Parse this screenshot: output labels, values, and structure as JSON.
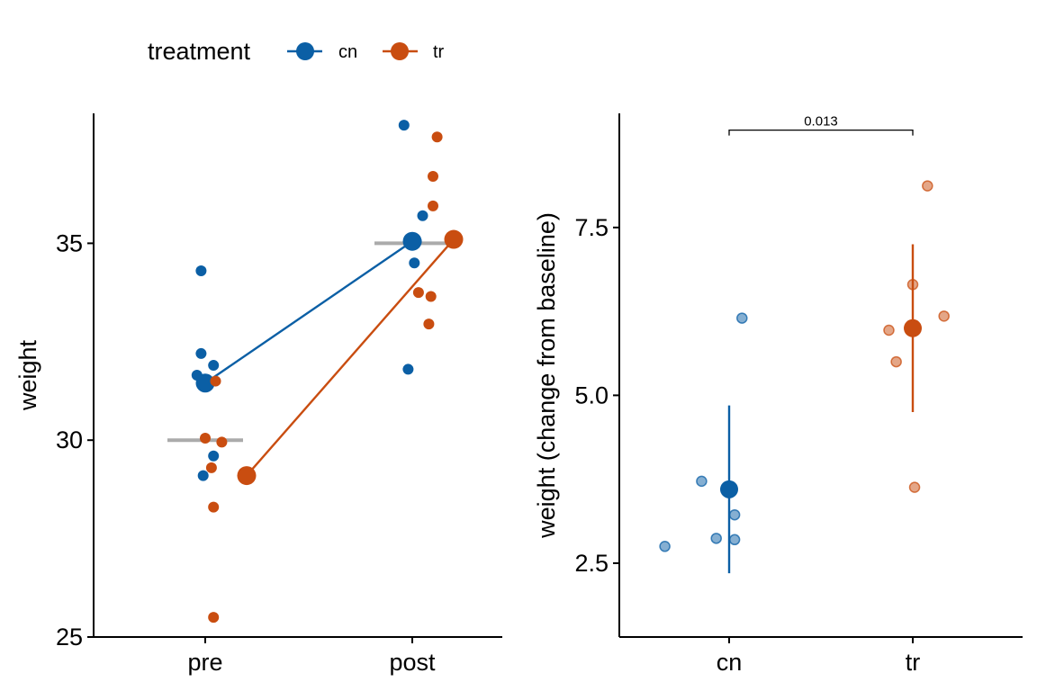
{
  "legend": {
    "title": "treatment",
    "items": [
      {
        "label": "cn",
        "color": "#0b5fa5"
      },
      {
        "label": "tr",
        "color": "#c94d10"
      }
    ],
    "position": "top"
  },
  "reference_color": "#ababab",
  "chart_data": [
    {
      "type": "scatter",
      "title": "",
      "xlabel": "",
      "ylabel": "weight",
      "categories": [
        "pre",
        "post"
      ],
      "ylim": [
        25,
        38.3
      ],
      "yticks": [
        25,
        30,
        35
      ],
      "tick_labels": [
        "25",
        "30",
        "35"
      ],
      "reference_lines": [
        {
          "category": "pre",
          "value": 30
        },
        {
          "category": "post",
          "value": 35
        }
      ],
      "series": [
        {
          "name": "cn",
          "points": [
            {
              "category": "pre",
              "offset": -0.02,
              "value": 34.3
            },
            {
              "category": "pre",
              "offset": -0.02,
              "value": 32.2
            },
            {
              "category": "pre",
              "offset": 0.04,
              "value": 31.9
            },
            {
              "category": "pre",
              "offset": -0.04,
              "value": 31.65
            },
            {
              "category": "pre",
              "offset": 0.04,
              "value": 29.6
            },
            {
              "category": "pre",
              "offset": -0.01,
              "value": 29.1
            },
            {
              "category": "post",
              "offset": -0.04,
              "value": 38.0
            },
            {
              "category": "post",
              "offset": 0.05,
              "value": 35.7
            },
            {
              "category": "post",
              "offset": 0.02,
              "value": 35.05
            },
            {
              "category": "post",
              "offset": 0.01,
              "value": 34.5
            },
            {
              "category": "post",
              "offset": -0.02,
              "value": 31.8
            }
          ],
          "means": [
            {
              "category": "pre",
              "offset": 0.0,
              "value": 31.45
            },
            {
              "category": "post",
              "offset": 0.0,
              "value": 35.05
            }
          ]
        },
        {
          "name": "tr",
          "points": [
            {
              "category": "pre",
              "offset": 0.05,
              "value": 31.5
            },
            {
              "category": "pre",
              "offset": 0.0,
              "value": 30.05
            },
            {
              "category": "pre",
              "offset": 0.08,
              "value": 29.95
            },
            {
              "category": "pre",
              "offset": 0.03,
              "value": 29.3
            },
            {
              "category": "pre",
              "offset": 0.04,
              "value": 28.3
            },
            {
              "category": "pre",
              "offset": 0.04,
              "value": 25.5
            },
            {
              "category": "post",
              "offset": 0.12,
              "value": 37.7
            },
            {
              "category": "post",
              "offset": 0.1,
              "value": 36.7
            },
            {
              "category": "post",
              "offset": 0.1,
              "value": 35.95
            },
            {
              "category": "post",
              "offset": 0.03,
              "value": 33.75
            },
            {
              "category": "post",
              "offset": 0.09,
              "value": 33.65
            },
            {
              "category": "post",
              "offset": 0.08,
              "value": 32.95
            }
          ],
          "means": [
            {
              "category": "pre",
              "offset": 0.2,
              "value": 29.1
            },
            {
              "category": "post",
              "offset": 0.2,
              "value": 35.1
            }
          ]
        }
      ]
    },
    {
      "type": "scatter",
      "title": "",
      "xlabel": "",
      "ylabel": "weight (change from baseline)",
      "categories": [
        "cn",
        "tr"
      ],
      "ylim": [
        1.4,
        9.2
      ],
      "yticks": [
        2.5,
        5.0,
        7.5
      ],
      "tick_labels": [
        "2.5",
        "5.0",
        "7.5"
      ],
      "significance": {
        "from": "cn",
        "to": "tr",
        "label": "0.013",
        "value": 8.95
      },
      "series": [
        {
          "name": "cn",
          "points": [
            {
              "category": "cn",
              "offset": -0.35,
              "value": 2.75
            },
            {
              "category": "cn",
              "offset": -0.15,
              "value": 3.72
            },
            {
              "category": "cn",
              "offset": -0.07,
              "value": 2.87
            },
            {
              "category": "cn",
              "offset": 0.03,
              "value": 2.85
            },
            {
              "category": "cn",
              "offset": 0.03,
              "value": 3.22
            },
            {
              "category": "cn",
              "offset": 0.07,
              "value": 6.15
            }
          ],
          "mean": 3.6,
          "ci": [
            2.35,
            4.85
          ]
        },
        {
          "name": "tr",
          "points": [
            {
              "category": "tr",
              "offset": 0.08,
              "value": 8.12
            },
            {
              "category": "tr",
              "offset": 0.0,
              "value": 6.65
            },
            {
              "category": "tr",
              "offset": 0.17,
              "value": 6.18
            },
            {
              "category": "tr",
              "offset": -0.13,
              "value": 5.97
            },
            {
              "category": "tr",
              "offset": -0.09,
              "value": 5.5
            },
            {
              "category": "tr",
              "offset": 0.01,
              "value": 3.63
            }
          ],
          "mean": 6.0,
          "ci": [
            4.75,
            7.25
          ]
        }
      ]
    }
  ]
}
